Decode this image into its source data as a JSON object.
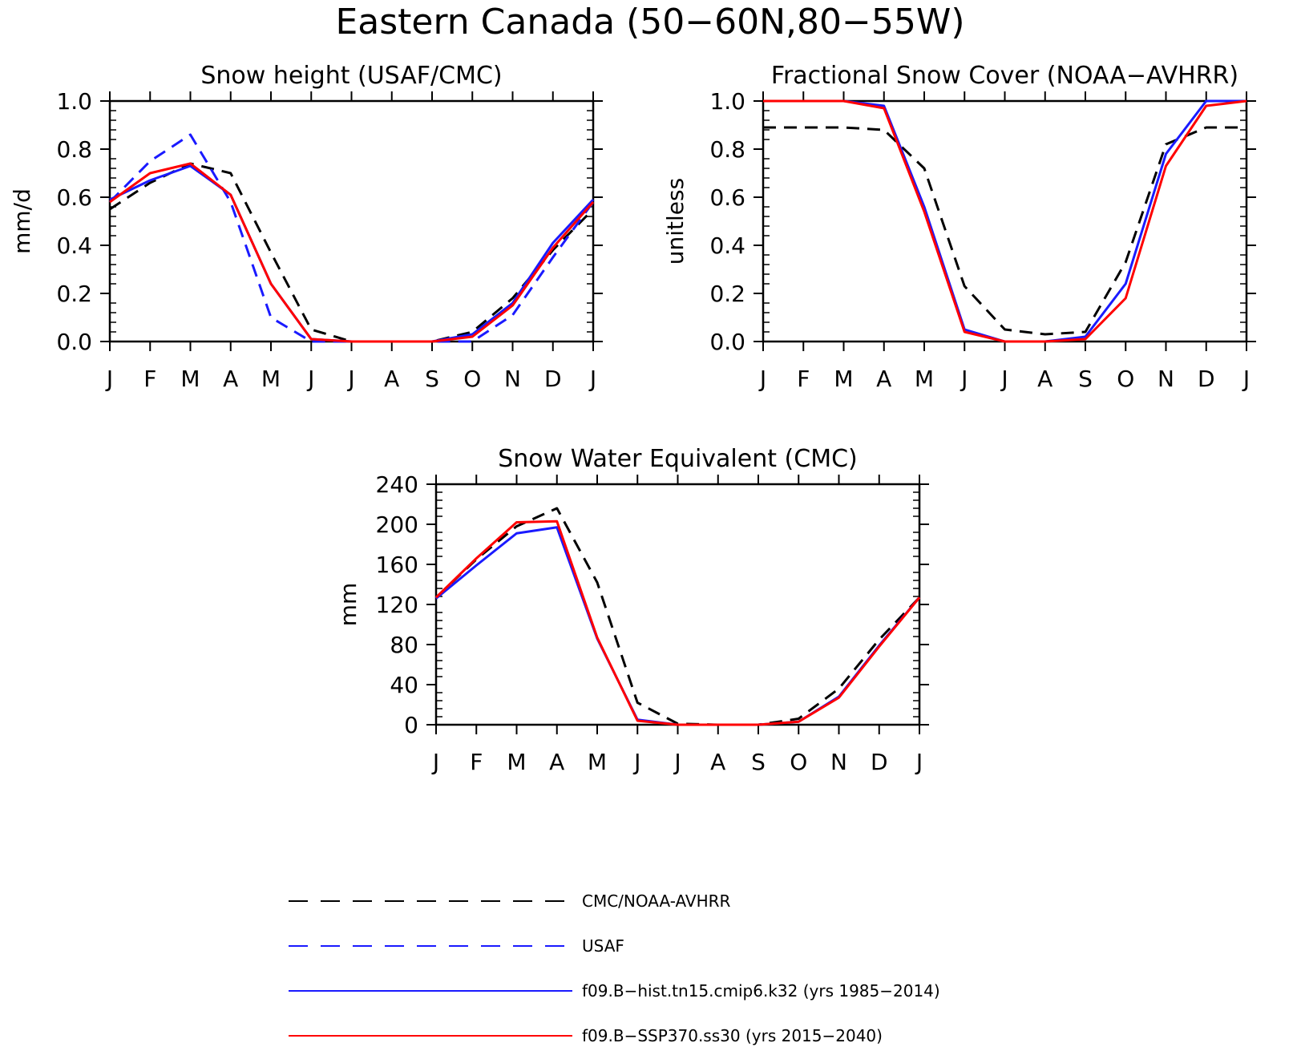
{
  "figure": {
    "title": "Eastern Canada (50−60N,80−55W)"
  },
  "colors": {
    "obs": "#000000",
    "usaf": "#1a1aff",
    "hist": "#1a1aff",
    "ssp": "#ff0000"
  },
  "legend": [
    {
      "label": "CMC/NOAA-AVHRR",
      "color": "#000000",
      "dash": "dashed"
    },
    {
      "label": "USAF",
      "color": "#1a1aff",
      "dash": "dashed"
    },
    {
      "label": "f09.B−hist.tn15.cmip6.k32 (yrs 1985−2014)",
      "color": "#1a1aff",
      "dash": "solid"
    },
    {
      "label": "f09.B−SSP370.ss30 (yrs 2015−2040)",
      "color": "#ff0000",
      "dash": "solid"
    }
  ],
  "chart_data": [
    {
      "type": "line",
      "title": "Snow height (USAF/CMC)",
      "ylabel": "mm/d",
      "xlabel": "",
      "categories": [
        "J",
        "F",
        "M",
        "A",
        "M",
        "J",
        "J",
        "A",
        "S",
        "O",
        "N",
        "D",
        "J"
      ],
      "ylim": [
        0,
        1.0
      ],
      "yticks": [
        "0.0",
        "0.2",
        "0.4",
        "0.6",
        "0.8",
        "1.0"
      ],
      "series": [
        {
          "name": "CMC/NOAA-AVHRR",
          "color": "#000000",
          "dash": "dashed",
          "values": [
            0.55,
            0.66,
            0.74,
            0.7,
            0.37,
            0.05,
            0.0,
            0.0,
            0.0,
            0.04,
            0.18,
            0.38,
            0.55
          ]
        },
        {
          "name": "USAF",
          "color": "#1a1aff",
          "dash": "dashed",
          "values": [
            0.58,
            0.75,
            0.86,
            0.58,
            0.1,
            0.0,
            0.0,
            0.0,
            0.0,
            0.0,
            0.11,
            0.35,
            0.58
          ]
        },
        {
          "name": "f09.B−hist.tn15.cmip6.k32 (yrs 1985−2014)",
          "color": "#1a1aff",
          "dash": "solid",
          "values": [
            0.59,
            0.67,
            0.73,
            0.61,
            0.24,
            0.01,
            0.0,
            0.0,
            0.0,
            0.03,
            0.16,
            0.41,
            0.59
          ]
        },
        {
          "name": "f09.B−SSP370.ss30 (yrs 2015−2040)",
          "color": "#ff0000",
          "dash": "solid",
          "values": [
            0.58,
            0.7,
            0.74,
            0.61,
            0.24,
            0.01,
            0.0,
            0.0,
            0.0,
            0.02,
            0.15,
            0.39,
            0.58
          ]
        }
      ]
    },
    {
      "type": "line",
      "title": "Fractional Snow Cover (NOAA−AVHRR)",
      "ylabel": "unitless",
      "xlabel": "",
      "categories": [
        "J",
        "F",
        "M",
        "A",
        "M",
        "J",
        "J",
        "A",
        "S",
        "O",
        "N",
        "D",
        "J"
      ],
      "ylim": [
        0,
        1.0
      ],
      "yticks": [
        "0.0",
        "0.2",
        "0.4",
        "0.6",
        "0.8",
        "1.0"
      ],
      "series": [
        {
          "name": "CMC/NOAA-AVHRR",
          "color": "#000000",
          "dash": "dashed",
          "values": [
            0.89,
            0.89,
            0.89,
            0.88,
            0.72,
            0.23,
            0.05,
            0.03,
            0.04,
            0.33,
            0.82,
            0.89,
            0.89
          ]
        },
        {
          "name": "f09.B−hist.tn15.cmip6.k32 (yrs 1985−2014)",
          "color": "#1a1aff",
          "dash": "solid",
          "values": [
            1.0,
            1.0,
            1.0,
            0.98,
            0.56,
            0.05,
            0.0,
            0.0,
            0.02,
            0.24,
            0.78,
            1.0,
            1.0
          ]
        },
        {
          "name": "f09.B−SSP370.ss30 (yrs 2015−2040)",
          "color": "#ff0000",
          "dash": "solid",
          "values": [
            1.0,
            1.0,
            1.0,
            0.97,
            0.54,
            0.04,
            0.0,
            0.0,
            0.01,
            0.18,
            0.73,
            0.98,
            1.0
          ]
        }
      ]
    },
    {
      "type": "line",
      "title": "Snow Water Equivalent (CMC)",
      "ylabel": "mm",
      "xlabel": "",
      "categories": [
        "J",
        "F",
        "M",
        "A",
        "M",
        "J",
        "J",
        "A",
        "S",
        "O",
        "N",
        "D",
        "J"
      ],
      "ylim": [
        0,
        240
      ],
      "yticks": [
        "0",
        "40",
        "80",
        "120",
        "160",
        "200",
        "240"
      ],
      "series": [
        {
          "name": "CMC/NOAA-AVHRR",
          "color": "#000000",
          "dash": "dashed",
          "values": [
            127,
            165,
            198,
            216,
            142,
            22,
            1,
            0,
            0,
            6,
            36,
            85,
            127
          ]
        },
        {
          "name": "f09.B−hist.tn15.cmip6.k32 (yrs 1985−2014)",
          "color": "#1a1aff",
          "dash": "solid",
          "values": [
            126,
            159,
            191,
            197,
            86,
            5,
            0,
            0,
            0,
            3,
            28,
            79,
            127
          ]
        },
        {
          "name": "f09.B−SSP370.ss30 (yrs 2015−2040)",
          "color": "#ff0000",
          "dash": "solid",
          "values": [
            127,
            166,
            202,
            203,
            87,
            4,
            0,
            0,
            0,
            3,
            27,
            78,
            127
          ]
        }
      ]
    }
  ]
}
